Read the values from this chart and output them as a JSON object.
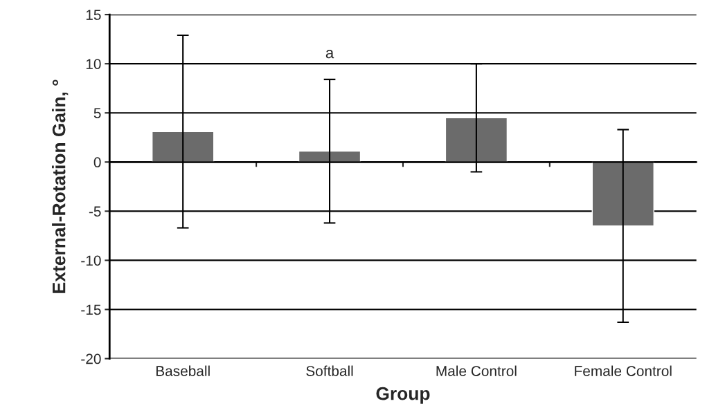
{
  "chart_data": {
    "type": "bar",
    "categories": [
      "Baseball",
      "Softball",
      "Male Control",
      "Female Control"
    ],
    "values": [
      3.1,
      1.1,
      4.5,
      -6.5
    ],
    "errors": [
      9.8,
      7.3,
      5.5,
      9.8
    ],
    "color": "#6b6b6b",
    "xlabel": "Group",
    "ylabel": "External-Rotation Gain, °",
    "ylim": [
      -20,
      15
    ],
    "yticks": [
      -20,
      -15,
      -10,
      -5,
      0,
      5,
      10,
      15
    ],
    "grid": "y",
    "annotations": [
      "a"
    ]
  }
}
